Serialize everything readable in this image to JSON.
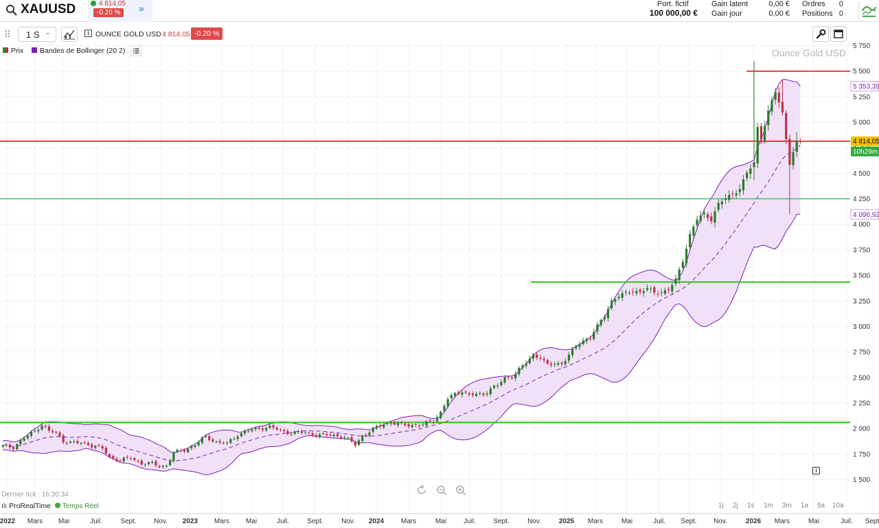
{
  "topbar": {
    "symbol": "XAUUSD",
    "quote_price": "4 814,05",
    "quote_change": "-0.20 %",
    "account": {
      "portfolio_label": "Port. fictif",
      "portfolio_value": "100 000,00 €",
      "gain_latent_label": "Gain latent",
      "gain_latent_value": "0,00 €",
      "gain_jour_label": "Gain jour",
      "gain_jour_value": "0,00 €",
      "orders_label": "Ordres",
      "orders_value": "0",
      "positions_label": "Positions",
      "positions_value": "0"
    }
  },
  "toolbar": {
    "timeframe": "1 S",
    "instrument_name": "OUNCE GOLD USD",
    "instrument_price": "4 814,05",
    "instrument_change": "-0.20 %"
  },
  "legend": {
    "price_label": "Prix",
    "bollinger_label": "Bandes de Bollinger (20 2)"
  },
  "footer": {
    "last_tick": "Dernier tick : 16:30:34",
    "prorealtime": "ProRealTime",
    "realtime": "Temps Réel",
    "periods": [
      "1j",
      "2j",
      "1s",
      "1m",
      "3m",
      "1a",
      "5a",
      "10a"
    ]
  },
  "chart_data": {
    "type": "candlestick",
    "title": "Ounce Gold USD",
    "x_tick_labels": [
      "2022",
      "Mars",
      "Mai",
      "Juil.",
      "Sept.",
      "Nov.",
      "2023",
      "Mars",
      "Mai",
      "Juil.",
      "Sept.",
      "Nov.",
      "2024",
      "Mars",
      "Mai",
      "Juil.",
      "Sept.",
      "Nov.",
      "2025",
      "Mars",
      "Mai",
      "Juil.",
      "Sept.",
      "Nov.",
      "2026",
      "Mars",
      "Mai",
      "Juil.",
      "Sept"
    ],
    "ylim": [
      1350,
      5850
    ],
    "y_ticks": [
      1500,
      1750,
      2000,
      2250,
      2500,
      2750,
      3000,
      3250,
      3500,
      3750,
      4000,
      4250,
      4500,
      4750,
      5000,
      5250,
      5500,
      5750
    ],
    "y_tick_labels": [
      "1 500",
      "1 750",
      "2 000",
      "2 250",
      "2 500",
      "2 750",
      "3 000",
      "3 250",
      "3 500",
      "3 750",
      "4 000",
      "4 250",
      "4 500",
      "4 750",
      "5 000",
      "5 250",
      "5 500",
      "5 750"
    ],
    "current_price": 4814.05,
    "current_price_label": "4 814,05",
    "countdown_label": "10h29m",
    "bollinger_upper_last": 5353.39,
    "bollinger_upper_label": "5 353,39",
    "bollinger_lower_last": 4096.92,
    "bollinger_lower_label": "4 096,92",
    "horizontal_lines": [
      {
        "name": "current-price-line",
        "value": 4814.05,
        "color": "#d40000"
      },
      {
        "name": "resistance-5500",
        "value": 5500,
        "color": "#e00000"
      },
      {
        "name": "support-4250",
        "value": 4250,
        "color": "#3cc36a"
      },
      {
        "name": "support-3435",
        "value": 3435,
        "color": "#2ec21e"
      },
      {
        "name": "support-2060",
        "value": 2060,
        "color": "#2ec21e"
      }
    ],
    "price_anchors": [
      [
        0,
        1825
      ],
      [
        3,
        1820
      ],
      [
        6,
        1905
      ],
      [
        9,
        1975
      ],
      [
        11,
        2040
      ],
      [
        13,
        1975
      ],
      [
        15,
        1955
      ],
      [
        17,
        1880
      ],
      [
        20,
        1860
      ],
      [
        23,
        1855
      ],
      [
        26,
        1830
      ],
      [
        28,
        1800
      ],
      [
        30,
        1720
      ],
      [
        33,
        1690
      ],
      [
        36,
        1710
      ],
      [
        39,
        1660
      ],
      [
        42,
        1655
      ],
      [
        44,
        1630
      ],
      [
        46,
        1640
      ],
      [
        48,
        1760
      ],
      [
        51,
        1790
      ],
      [
        54,
        1840
      ],
      [
        57,
        1920
      ],
      [
        60,
        1870
      ],
      [
        63,
        1850
      ],
      [
        66,
        1940
      ],
      [
        69,
        1980
      ],
      [
        72,
        2000
      ],
      [
        75,
        2020
      ],
      [
        78,
        1975
      ],
      [
        81,
        1960
      ],
      [
        84,
        1960
      ],
      [
        87,
        1945
      ],
      [
        90,
        1935
      ],
      [
        93,
        1935
      ],
      [
        96,
        1915
      ],
      [
        99,
        1840
      ],
      [
        101,
        1930
      ],
      [
        104,
        1990
      ],
      [
        107,
        2045
      ],
      [
        109,
        2060
      ],
      [
        112,
        2035
      ],
      [
        115,
        2035
      ],
      [
        118,
        2035
      ],
      [
        121,
        2080
      ],
      [
        123,
        2160
      ],
      [
        125,
        2290
      ],
      [
        127,
        2335
      ],
      [
        129,
        2370
      ],
      [
        131,
        2330
      ],
      [
        133,
        2330
      ],
      [
        135,
        2335
      ],
      [
        137,
        2395
      ],
      [
        139,
        2420
      ],
      [
        141,
        2490
      ],
      [
        143,
        2510
      ],
      [
        145,
        2580
      ],
      [
        147,
        2640
      ],
      [
        149,
        2720
      ],
      [
        151,
        2700
      ],
      [
        153,
        2620
      ],
      [
        155,
        2630
      ],
      [
        157,
        2640
      ],
      [
        159,
        2720
      ],
      [
        161,
        2800
      ],
      [
        163,
        2860
      ],
      [
        165,
        2900
      ],
      [
        167,
        3000
      ],
      [
        169,
        3100
      ],
      [
        171,
        3250
      ],
      [
        173,
        3300
      ],
      [
        175,
        3320
      ],
      [
        177,
        3350
      ],
      [
        179,
        3340
      ],
      [
        181,
        3370
      ],
      [
        183,
        3330
      ],
      [
        185,
        3340
      ],
      [
        187,
        3360
      ],
      [
        189,
        3450
      ],
      [
        191,
        3650
      ],
      [
        193,
        3900
      ],
      [
        195,
        4050
      ],
      [
        197,
        4100
      ],
      [
        199,
        4050
      ],
      [
        201,
        4200
      ],
      [
        203,
        4250
      ],
      [
        205,
        4300
      ],
      [
        207,
        4350
      ],
      [
        209,
        4500
      ],
      [
        211,
        4600
      ],
      [
        212,
        4950
      ],
      [
        213,
        4850
      ],
      [
        215,
        5100
      ],
      [
        217,
        5300
      ],
      [
        219,
        5090
      ],
      [
        221,
        4600
      ],
      [
        222,
        4700
      ],
      [
        223,
        4800
      ],
      [
        224,
        4814
      ]
    ],
    "notable_wick_highs": [
      [
        211,
        5600
      ],
      [
        219,
        5420
      ],
      [
        223,
        4900
      ]
    ],
    "notable_wick_lows": [
      [
        221,
        4100
      ],
      [
        211,
        4430
      ]
    ]
  }
}
